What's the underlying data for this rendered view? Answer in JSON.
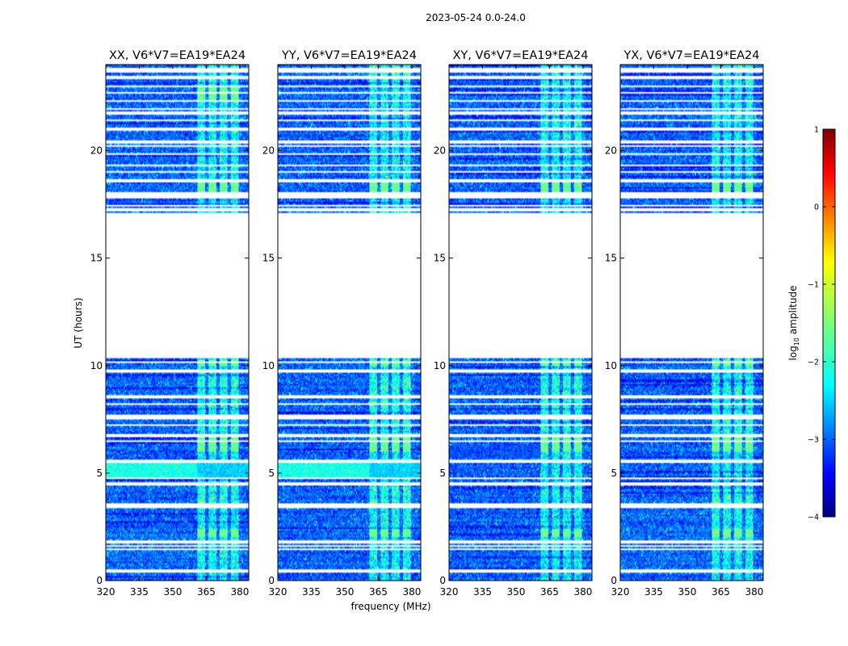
{
  "chart_data": {
    "type": "heatmap",
    "title": "2023-05-24 0.0-24.0",
    "xlabel": "frequency (MHz)",
    "ylabel": "UT (hours)",
    "xlim": [
      320,
      384
    ],
    "ylim": [
      0,
      24
    ],
    "xticks": [
      "320",
      "335",
      "350",
      "365",
      "380"
    ],
    "xtick_values": [
      320,
      335,
      350,
      365,
      380
    ],
    "yticks": [
      "0",
      "5",
      "10",
      "15",
      "20"
    ],
    "ytick_values": [
      0,
      5,
      10,
      15,
      20
    ],
    "panels": [
      {
        "title": "XX, V6*V7=EA19*EA24",
        "polarization": "XX"
      },
      {
        "title": "YY, V6*V7=EA19*EA24",
        "polarization": "YY"
      },
      {
        "title": "XY, V6*V7=EA19*EA24",
        "polarization": "XY"
      },
      {
        "title": "YX, V6*V7=EA19*EA24",
        "polarization": "YX"
      }
    ],
    "colorbar": {
      "label": "log10 amplitude",
      "label_base": "log",
      "label_sub": "10",
      "label_rest": " amplitude",
      "range": [
        -4,
        1
      ],
      "ticks": [
        "1",
        "0",
        "−1",
        "−2",
        "−3",
        "−4"
      ],
      "tick_values": [
        1,
        0,
        -1,
        -2,
        -3,
        -4
      ],
      "colormap": "jet"
    },
    "no_data_range_hours": [
      10.35,
      17.1
    ],
    "rfi_band_mhz": [
      361,
      381
    ],
    "rfi_channels_mhz": [
      [
        361,
        364.5
      ],
      [
        366,
        369.5
      ],
      [
        371,
        374.5
      ],
      [
        376,
        379.5
      ]
    ],
    "flagged_row_hours": [
      0.45,
      1.45,
      1.6,
      1.8,
      3.45,
      3.55,
      4.5,
      4.75,
      5.55,
      6.5,
      6.75,
      7.25,
      7.55,
      7.65,
      8.2,
      8.5,
      8.6,
      9.75,
      10.15,
      17.25,
      17.45,
      17.85,
      18.0,
      18.6,
      19.0,
      19.3,
      19.85,
      20.2,
      20.4,
      21.0,
      21.4,
      21.75,
      21.95,
      22.3,
      22.7,
      23.0,
      23.4,
      23.7,
      23.8
    ],
    "notes": [
      "heatmap texture reconstructed approximately"
    ]
  }
}
